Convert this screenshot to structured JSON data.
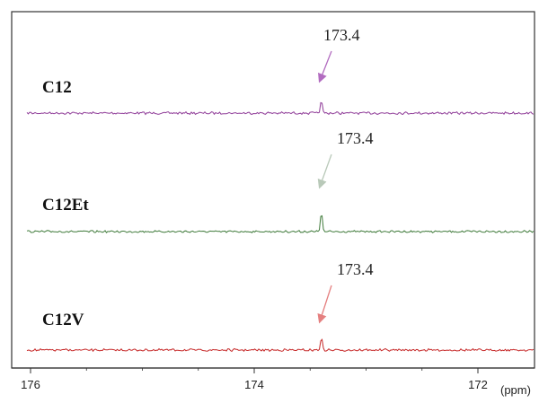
{
  "chart_data": {
    "type": "line",
    "x_unit": "(ppm)",
    "x_axis": {
      "range": [
        176.0,
        171.6
      ],
      "reversed": true,
      "ticks": [
        176,
        174,
        172
      ],
      "tick_labels": [
        "176",
        "174",
        "172"
      ]
    },
    "grid": false,
    "legend": "none",
    "series": [
      {
        "name": "C12",
        "color": "#8e3a97",
        "arrow_color": "#b26cc0",
        "peak_ppm": 173.4,
        "peak_label": "173.4",
        "peak_height": 1.0,
        "noise": 0.22
      },
      {
        "name": "C12Et",
        "color": "#3f7a3a",
        "arrow_color": "#b9c9b9",
        "peak_ppm": 173.4,
        "peak_label": "173.4",
        "peak_height": 1.6,
        "noise": 0.18
      },
      {
        "name": "C12V",
        "color": "#c62828",
        "arrow_color": "#e58080",
        "peak_ppm": 173.4,
        "peak_label": "173.4",
        "peak_height": 1.0,
        "noise": 0.22
      }
    ]
  }
}
